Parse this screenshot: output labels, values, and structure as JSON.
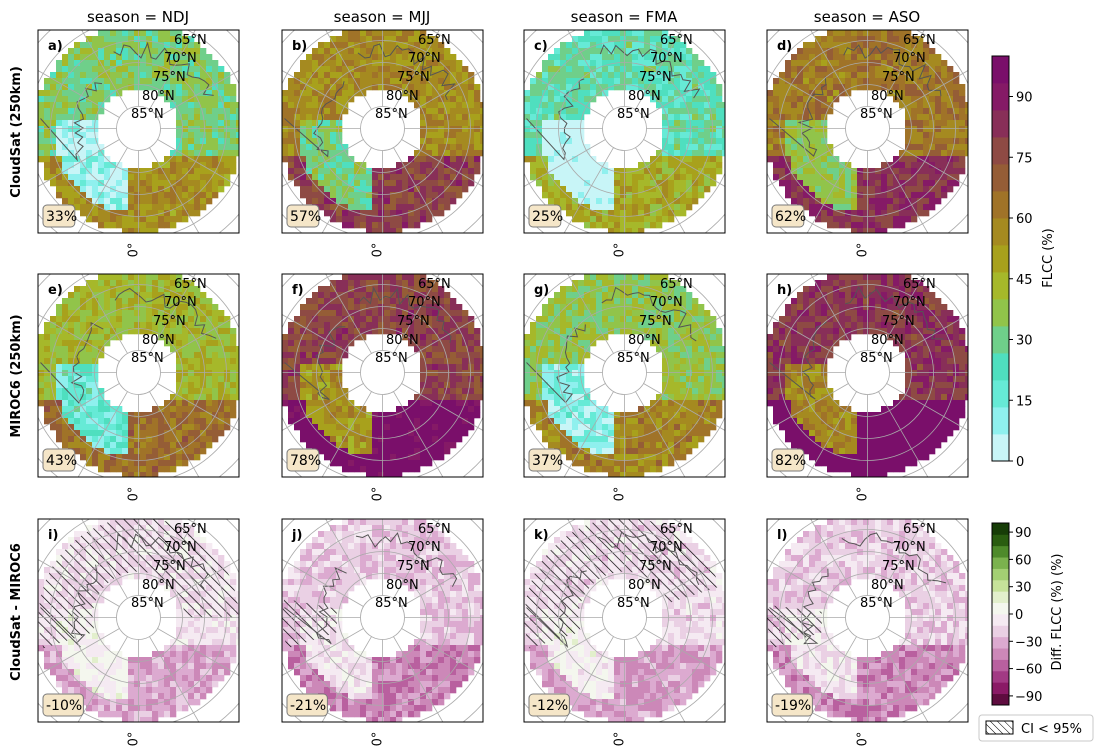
{
  "colors": {
    "flcc_scale": [
      "#c8f5f7",
      "#8ff0ee",
      "#66ead6",
      "#4fdfbf",
      "#6fcf8a",
      "#91c44a",
      "#a6b82a",
      "#a8a11c",
      "#a58a20",
      "#a07328",
      "#955d36",
      "#8e4a44",
      "#882f58",
      "#851a66",
      "#7a0f6a"
    ],
    "diff_scale": [
      "#5e0c3f",
      "#8a1a66",
      "#a23a84",
      "#b9609f",
      "#cc88b8",
      "#dcaad0",
      "#ead0e4",
      "#f5eaf2",
      "#f4f7ee",
      "#e2efcc",
      "#c6e29a",
      "#a3cf73",
      "#7bb24e",
      "#4e8a2a",
      "#2a5d10",
      "#173d07"
    ],
    "hatch": "#000000",
    "grid": "#aaaaaa",
    "coast": "#555555"
  },
  "chart_data": {
    "type": "heatmap",
    "projection": "north polar stereographic, annular domain, 0° meridian at bottom",
    "col_titles": [
      "season = NDJ",
      "season = MJJ",
      "season = FMA",
      "season = ASO"
    ],
    "row_titles": [
      "CloudSat (250km)",
      "MIROC6 (250km)",
      "CloudSat - MIROC6"
    ],
    "lat_labels": [
      "65°N",
      "70°N",
      "75°N",
      "80°N",
      "85°N"
    ],
    "lon_label": "0°",
    "panels": [
      {
        "label": "a)",
        "row": 0,
        "col": 0,
        "season": "NDJ",
        "value": "33%",
        "mean": 33
      },
      {
        "label": "b)",
        "row": 0,
        "col": 1,
        "season": "MJJ",
        "value": "57%",
        "mean": 57
      },
      {
        "label": "c)",
        "row": 0,
        "col": 2,
        "season": "FMA",
        "value": "25%",
        "mean": 25
      },
      {
        "label": "d)",
        "row": 0,
        "col": 3,
        "season": "ASO",
        "value": "62%",
        "mean": 62
      },
      {
        "label": "e)",
        "row": 1,
        "col": 0,
        "season": "NDJ",
        "value": "43%",
        "mean": 43
      },
      {
        "label": "f)",
        "row": 1,
        "col": 1,
        "season": "MJJ",
        "value": "78%",
        "mean": 78
      },
      {
        "label": "g)",
        "row": 1,
        "col": 2,
        "season": "FMA",
        "value": "37%",
        "mean": 37
      },
      {
        "label": "h)",
        "row": 1,
        "col": 3,
        "season": "ASO",
        "value": "82%",
        "mean": 82
      },
      {
        "label": "i)",
        "row": 2,
        "col": 0,
        "season": "NDJ",
        "value": "-10%",
        "mean": -10,
        "hatched": 0.55
      },
      {
        "label": "j)",
        "row": 2,
        "col": 1,
        "season": "MJJ",
        "value": "-21%",
        "mean": -21,
        "hatched": 0.08
      },
      {
        "label": "k)",
        "row": 2,
        "col": 2,
        "season": "FMA",
        "value": "-12%",
        "mean": -12,
        "hatched": 0.5
      },
      {
        "label": "l)",
        "row": 2,
        "col": 3,
        "season": "ASO",
        "value": "-19%",
        "mean": -19,
        "hatched": 0.07
      }
    ],
    "colorbar_flcc": {
      "label": "FLCC (%)",
      "ticks": [
        "0",
        "15",
        "30",
        "45",
        "60",
        "75",
        "90"
      ],
      "range": [
        0,
        100
      ]
    },
    "colorbar_diff": {
      "label": "Diff. FLCC (%)  (%)",
      "ticks": [
        "90",
        "60",
        "30",
        "0",
        "−30",
        "−60",
        "−90"
      ],
      "range": [
        -100,
        100
      ]
    },
    "legend": {
      "label": "CI < 95%"
    }
  }
}
